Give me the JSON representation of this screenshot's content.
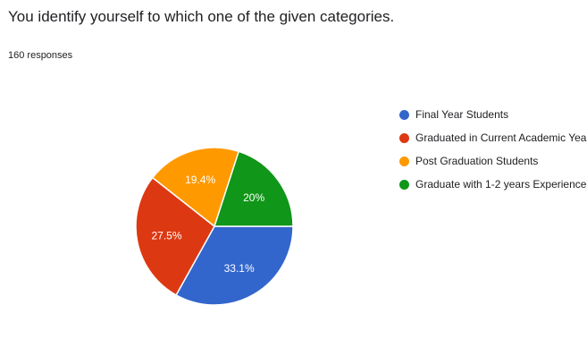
{
  "question": {
    "title": "You identify yourself to which one of the given categories.",
    "responses": "160 responses"
  },
  "chart_data": {
    "type": "pie",
    "categories": [
      "Final Year Students",
      "Graduated in Current Academic Year",
      "Post Graduation Students",
      "Graduate with 1-2 years Experience"
    ],
    "values": [
      33.1,
      27.5,
      19.4,
      20
    ],
    "value_labels": [
      "33.1%",
      "27.5%",
      "19.4%",
      "20%"
    ],
    "colors": [
      "#3366cc",
      "#dc3912",
      "#ff9900",
      "#109618"
    ],
    "legend_position": "right"
  }
}
